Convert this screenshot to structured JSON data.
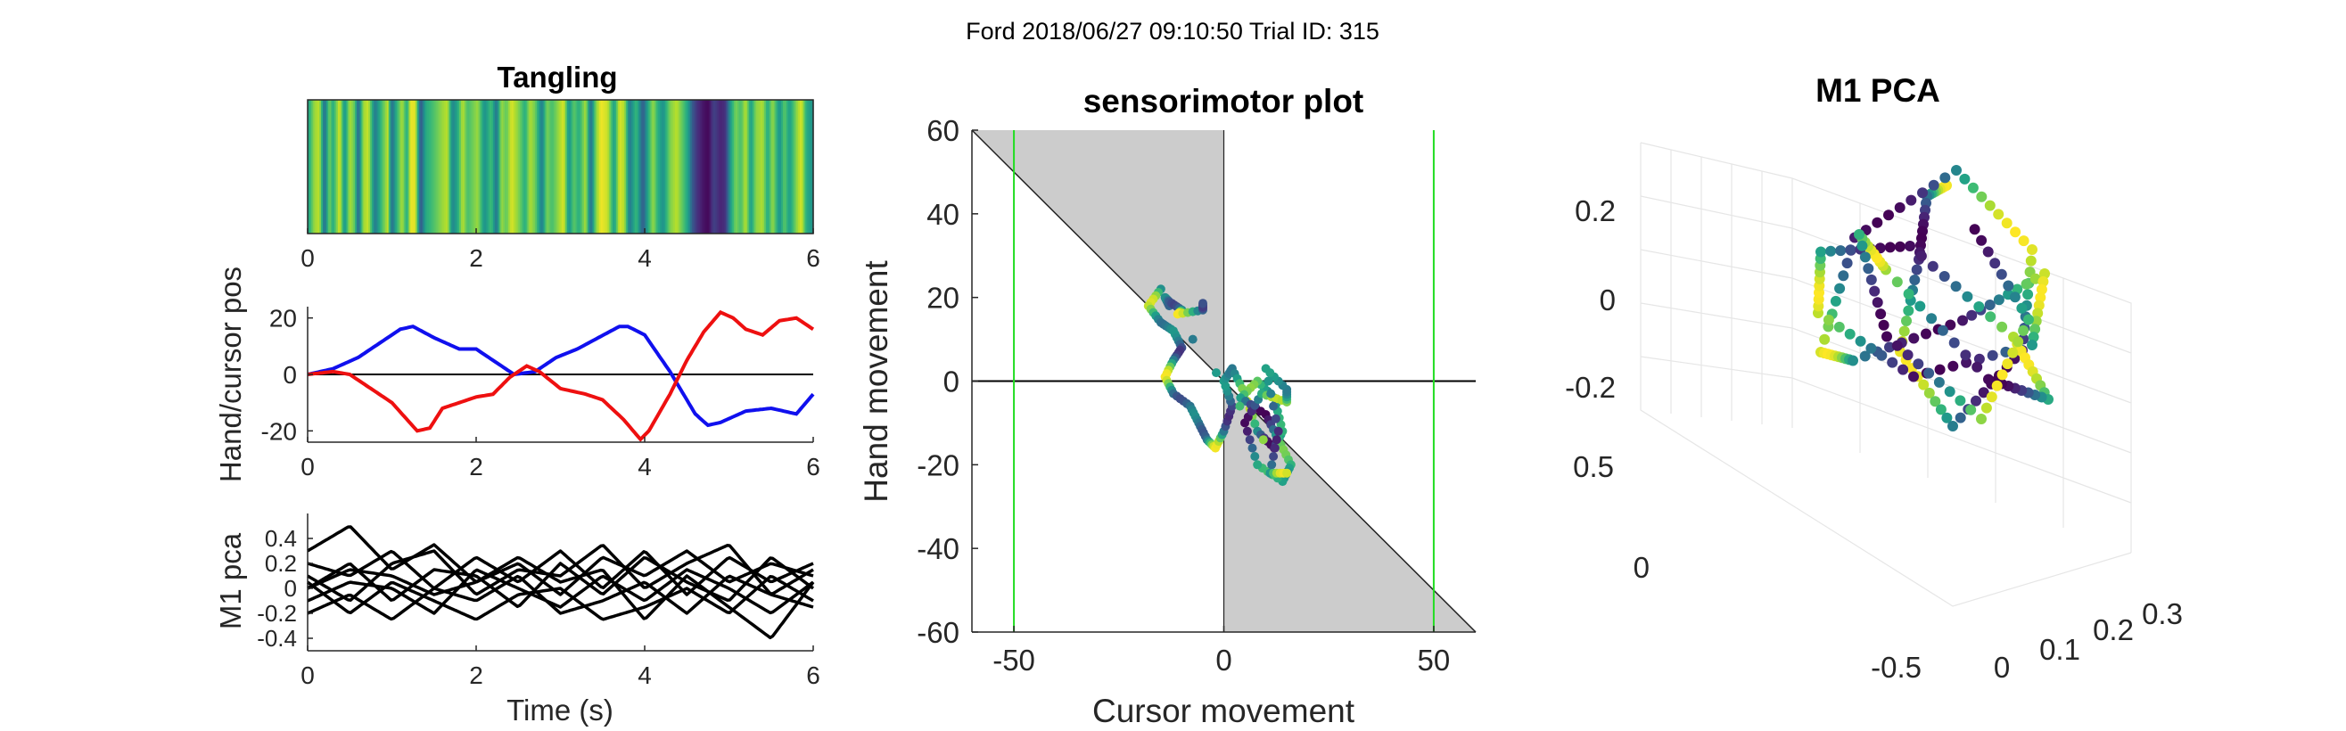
{
  "figure": {
    "suptitle": "Ford 2018/06/27 09:10:50 Trial ID: 315",
    "colormap": "viridis",
    "colors": {
      "hand": "#1010ee",
      "cursor": "#ee1010",
      "axis": "#262626",
      "zero_line": "#000000",
      "target": "#22dd22",
      "shade": "#cccccc",
      "grid": "#e6e6e6"
    }
  },
  "chart_data": [
    {
      "id": "tangling",
      "type": "heatmap",
      "title": "Tangling",
      "xlabel": "",
      "ylabel": "",
      "xlim": [
        0,
        6
      ],
      "xticks": [
        0,
        2,
        4,
        6
      ],
      "x_tick_labels": [
        "0",
        "2",
        "4",
        "6"
      ],
      "colormap": "viridis",
      "n_bins": 300,
      "value_knots": [
        [
          0.0,
          0.55
        ],
        [
          0.08,
          0.85
        ],
        [
          0.14,
          0.9
        ],
        [
          0.2,
          0.35
        ],
        [
          0.26,
          0.8
        ],
        [
          0.3,
          0.6
        ],
        [
          0.38,
          0.95
        ],
        [
          0.44,
          0.5
        ],
        [
          0.5,
          0.88
        ],
        [
          0.56,
          0.75
        ],
        [
          0.6,
          0.3
        ],
        [
          0.66,
          0.85
        ],
        [
          0.72,
          0.92
        ],
        [
          0.8,
          0.4
        ],
        [
          0.88,
          0.7
        ],
        [
          0.95,
          0.9
        ],
        [
          1.0,
          0.35
        ],
        [
          1.06,
          0.65
        ],
        [
          1.12,
          0.88
        ],
        [
          1.18,
          0.6
        ],
        [
          1.22,
          0.97
        ],
        [
          1.28,
          0.95
        ],
        [
          1.34,
          0.25
        ],
        [
          1.4,
          0.6
        ],
        [
          1.5,
          0.72
        ],
        [
          1.6,
          0.85
        ],
        [
          1.66,
          0.9
        ],
        [
          1.72,
          0.45
        ],
        [
          1.78,
          0.6
        ],
        [
          1.84,
          0.9
        ],
        [
          1.9,
          0.7
        ],
        [
          1.96,
          0.78
        ],
        [
          2.02,
          0.85
        ],
        [
          2.1,
          0.5
        ],
        [
          2.18,
          0.7
        ],
        [
          2.24,
          0.38
        ],
        [
          2.3,
          0.85
        ],
        [
          2.36,
          0.75
        ],
        [
          2.42,
          0.95
        ],
        [
          2.5,
          0.82
        ],
        [
          2.58,
          0.62
        ],
        [
          2.64,
          0.88
        ],
        [
          2.7,
          0.78
        ],
        [
          2.78,
          0.42
        ],
        [
          2.84,
          0.8
        ],
        [
          2.9,
          0.7
        ],
        [
          2.98,
          0.85
        ],
        [
          3.04,
          0.95
        ],
        [
          3.1,
          0.5
        ],
        [
          3.16,
          0.75
        ],
        [
          3.22,
          0.62
        ],
        [
          3.3,
          0.88
        ],
        [
          3.36,
          0.35
        ],
        [
          3.42,
          0.8
        ],
        [
          3.48,
          0.98
        ],
        [
          3.56,
          0.92
        ],
        [
          3.64,
          0.55
        ],
        [
          3.7,
          0.95
        ],
        [
          3.76,
          0.88
        ],
        [
          3.82,
          0.4
        ],
        [
          3.9,
          0.68
        ],
        [
          3.98,
          0.28
        ],
        [
          4.04,
          0.6
        ],
        [
          4.1,
          0.85
        ],
        [
          4.16,
          0.62
        ],
        [
          4.22,
          0.5
        ],
        [
          4.3,
          0.8
        ],
        [
          4.38,
          0.9
        ],
        [
          4.46,
          0.72
        ],
        [
          4.52,
          0.55
        ],
        [
          4.56,
          0.3
        ],
        [
          4.62,
          0.15
        ],
        [
          4.7,
          0.05
        ],
        [
          4.76,
          0.02
        ],
        [
          4.82,
          0.2
        ],
        [
          4.9,
          0.1
        ],
        [
          4.96,
          0.15
        ],
        [
          5.02,
          0.55
        ],
        [
          5.08,
          0.8
        ],
        [
          5.14,
          0.7
        ],
        [
          5.2,
          0.9
        ],
        [
          5.26,
          0.55
        ],
        [
          5.32,
          0.82
        ],
        [
          5.4,
          0.88
        ],
        [
          5.46,
          0.6
        ],
        [
          5.52,
          0.85
        ],
        [
          5.6,
          0.5
        ],
        [
          5.66,
          0.75
        ],
        [
          5.72,
          0.55
        ],
        [
          5.8,
          0.82
        ],
        [
          5.86,
          0.95
        ],
        [
          5.92,
          0.62
        ],
        [
          6.0,
          0.5
        ]
      ]
    },
    {
      "id": "hand_cursor",
      "type": "line",
      "title": "",
      "xlabel": "",
      "ylabel": "Hand/cursor pos",
      "xlim": [
        0,
        6
      ],
      "ylim": [
        -24,
        24
      ],
      "xticks": [
        0,
        2,
        4,
        6
      ],
      "x_tick_labels": [
        "0",
        "2",
        "4",
        "6"
      ],
      "yticks": [
        -20,
        0,
        20
      ],
      "y_tick_labels": [
        "-20",
        "0",
        "20"
      ],
      "zero_line": true,
      "series": [
        {
          "key": "hand",
          "color": "#1010ee",
          "x": [
            0,
            0.3,
            0.6,
            0.9,
            1.1,
            1.25,
            1.5,
            1.8,
            2.0,
            2.2,
            2.45,
            2.7,
            2.95,
            3.2,
            3.45,
            3.7,
            3.8,
            4.0,
            4.3,
            4.6,
            4.75,
            4.9,
            5.2,
            5.5,
            5.8,
            6.0
          ],
          "y": [
            0,
            2,
            6,
            12,
            16,
            17,
            13,
            9,
            9,
            5,
            0,
            1,
            6,
            9,
            13,
            17,
            17,
            14,
            1,
            -14,
            -18,
            -17,
            -13,
            -12,
            -14,
            -7
          ]
        },
        {
          "key": "cursor",
          "color": "#ee1010",
          "x": [
            0,
            0.3,
            0.5,
            0.7,
            1.0,
            1.3,
            1.45,
            1.6,
            1.8,
            2.0,
            2.2,
            2.4,
            2.6,
            2.75,
            3.0,
            3.3,
            3.5,
            3.75,
            3.95,
            4.05,
            4.3,
            4.5,
            4.7,
            4.9,
            5.05,
            5.2,
            5.4,
            5.6,
            5.8,
            6.0
          ],
          "y": [
            0,
            1,
            0,
            -4,
            -10,
            -20,
            -19,
            -12,
            -10,
            -8,
            -7,
            -1,
            3,
            1,
            -5,
            -7,
            -9,
            -16,
            -23,
            -20,
            -7,
            5,
            15,
            22,
            20,
            16,
            14,
            19,
            20,
            16
          ]
        }
      ]
    },
    {
      "id": "m1_pca_traces",
      "type": "line",
      "title": "",
      "xlabel": "Time (s)",
      "ylabel": "M1 pca",
      "xlim": [
        0,
        6
      ],
      "ylim": [
        -0.5,
        0.6
      ],
      "xticks": [
        0,
        2,
        4,
        6
      ],
      "x_tick_labels": [
        "0",
        "2",
        "4",
        "6"
      ],
      "yticks": [
        -0.4,
        -0.2,
        0,
        0.2,
        0.4
      ],
      "y_tick_labels": [
        "-0.4",
        "-0.2",
        "0",
        "0.2",
        "0.4"
      ],
      "line_color": "#000000",
      "series": [
        {
          "key": "pc1",
          "x": [
            0,
            0.5,
            1,
            1.5,
            2,
            2.5,
            3,
            3.5,
            4,
            4.5,
            5,
            5.5,
            6
          ],
          "y": [
            0.3,
            0.5,
            0.15,
            0.35,
            0.05,
            0.2,
            -0.05,
            0.25,
            0.1,
            0.3,
            0.05,
            0.2,
            0.1
          ]
        },
        {
          "key": "pc2",
          "x": [
            0,
            0.5,
            1,
            1.5,
            2,
            2.5,
            3,
            3.5,
            4,
            4.5,
            5,
            5.5,
            6
          ],
          "y": [
            0.2,
            0.1,
            0.3,
            0.0,
            0.25,
            0.05,
            0.3,
            0.0,
            0.3,
            -0.05,
            0.25,
            0.05,
            0.2
          ]
        },
        {
          "key": "pc3",
          "x": [
            0,
            0.5,
            1,
            1.5,
            2,
            2.5,
            3,
            3.5,
            4,
            4.5,
            5,
            5.5,
            6
          ],
          "y": [
            0.1,
            -0.1,
            0.2,
            0.3,
            -0.05,
            0.15,
            0.1,
            0.35,
            0.0,
            0.2,
            0.35,
            -0.05,
            0.15
          ]
        },
        {
          "key": "pc4",
          "x": [
            0,
            0.5,
            1,
            1.5,
            2,
            2.5,
            3,
            3.5,
            4,
            4.5,
            5,
            5.5,
            6
          ],
          "y": [
            0.0,
            0.2,
            -0.1,
            0.15,
            0.1,
            -0.15,
            0.2,
            -0.05,
            0.25,
            0.05,
            -0.1,
            0.25,
            0.0
          ]
        },
        {
          "key": "pc5",
          "x": [
            0,
            0.5,
            1,
            1.5,
            2,
            2.5,
            3,
            3.5,
            4,
            4.5,
            5,
            5.5,
            6
          ],
          "y": [
            -0.1,
            0.05,
            0.0,
            -0.2,
            0.15,
            0.0,
            -0.15,
            0.1,
            -0.1,
            0.15,
            0.0,
            -0.2,
            0.05
          ]
        },
        {
          "key": "pc6",
          "x": [
            0,
            0.5,
            1,
            1.5,
            2,
            2.5,
            3,
            3.5,
            4,
            4.5,
            5,
            5.5,
            6
          ],
          "y": [
            -0.2,
            -0.05,
            -0.25,
            0.0,
            -0.1,
            0.1,
            -0.2,
            -0.1,
            0.05,
            -0.2,
            0.1,
            -0.05,
            -0.15
          ]
        },
        {
          "key": "pc7",
          "x": [
            0,
            0.5,
            1,
            1.5,
            2,
            2.5,
            3,
            3.5,
            4,
            4.5,
            5,
            5.5,
            6
          ],
          "y": [
            0.05,
            -0.2,
            0.05,
            -0.1,
            -0.25,
            -0.05,
            0.0,
            -0.25,
            -0.15,
            0.0,
            -0.2,
            0.1,
            -0.1
          ]
        },
        {
          "key": "pc8",
          "x": [
            0,
            0.5,
            1,
            1.5,
            2,
            2.5,
            3,
            3.5,
            4,
            4.5,
            5,
            5.5,
            6
          ],
          "y": [
            0.0,
            0.15,
            0.1,
            -0.05,
            0.05,
            0.25,
            0.05,
            0.15,
            -0.25,
            0.1,
            -0.15,
            -0.4,
            0.05
          ]
        }
      ]
    },
    {
      "id": "sensorimotor",
      "type": "scatter",
      "title": "sensorimotor plot",
      "xlabel": "Cursor movement",
      "ylabel": "Hand movement",
      "xlim": [
        -60,
        60
      ],
      "ylim": [
        -60,
        60
      ],
      "xticks": [
        -50,
        0,
        50
      ],
      "x_tick_labels": [
        "-50",
        "0",
        "50"
      ],
      "yticks": [
        -60,
        -40,
        -20,
        0,
        20,
        40,
        60
      ],
      "y_tick_labels": [
        "-60",
        "-40",
        "-20",
        "0",
        "20",
        "40",
        "60"
      ],
      "target_lines_x": [
        -50,
        50
      ],
      "shaded_quadrants": [
        "upper-left above diagonal",
        "lower-right below diagonal"
      ],
      "diagonal": {
        "x": [
          -60,
          60
        ],
        "y": [
          60,
          -60
        ]
      },
      "colormap": "viridis",
      "points": [
        [
          -15,
          22
        ],
        [
          -18,
          18
        ],
        [
          -15,
          14
        ],
        [
          -12,
          12
        ],
        [
          -10,
          8
        ],
        [
          -12,
          5
        ],
        [
          -14,
          1
        ],
        [
          -12,
          -3
        ],
        [
          -8,
          -6
        ],
        [
          -6,
          -10
        ],
        [
          -4,
          -14
        ],
        [
          -2,
          -16
        ],
        [
          0,
          -12
        ],
        [
          2,
          -6
        ],
        [
          0,
          0
        ],
        [
          2,
          3
        ],
        [
          5,
          -3
        ],
        [
          8,
          -12
        ],
        [
          12,
          -16
        ],
        [
          14,
          -12
        ],
        [
          12,
          -4
        ],
        [
          8,
          0
        ],
        [
          4,
          -4
        ],
        [
          10,
          -8
        ],
        [
          13,
          -14
        ],
        [
          16,
          -20
        ],
        [
          14,
          -24
        ],
        [
          8,
          -20
        ],
        [
          5,
          -10
        ],
        [
          9,
          -3
        ],
        [
          15,
          -5
        ],
        [
          15,
          -2
        ],
        [
          10,
          3
        ],
        [
          13,
          -12
        ],
        [
          11,
          -22
        ],
        [
          15,
          -22
        ],
        [
          -13,
          18
        ],
        [
          -14,
          20
        ],
        [
          -13,
          19
        ],
        [
          -10,
          17
        ],
        [
          -11,
          16
        ],
        [
          -5,
          17
        ],
        [
          -5,
          19
        ]
      ]
    },
    {
      "id": "m1_pca_3d",
      "type": "scatter",
      "title": "M1 PCA",
      "xlabel": "",
      "ylabel": "",
      "zlabel": "",
      "z_ticks": [
        -0.2,
        0,
        0.2
      ],
      "z_tick_labels": [
        "-0.2",
        "0",
        "0.2"
      ],
      "x_tick_labels": [
        "0.5",
        "0",
        "-0.5"
      ],
      "y_tick_labels": [
        "0",
        "0.1",
        "0.2",
        "0.3"
      ],
      "grid": true,
      "colormap": "viridis",
      "trajectory": [
        [
          -0.4,
          -0.3,
          0.1
        ],
        [
          -0.2,
          -0.1,
          0.2
        ],
        [
          0,
          0.05,
          0.15
        ],
        [
          0.15,
          0.2,
          0
        ],
        [
          0.3,
          0.1,
          -0.15
        ],
        [
          0.2,
          -0.2,
          -0.05
        ],
        [
          0,
          -0.35,
          0.1
        ],
        [
          -0.2,
          -0.2,
          0.25
        ],
        [
          -0.35,
          0.05,
          0.05
        ],
        [
          -0.2,
          0.25,
          -0.15
        ],
        [
          0.05,
          0.3,
          -0.05
        ],
        [
          0.25,
          0.05,
          0.1
        ],
        [
          0.3,
          -0.2,
          0.2
        ],
        [
          0.1,
          -0.3,
          -0.1
        ],
        [
          -0.15,
          -0.05,
          -0.25
        ],
        [
          -0.3,
          0.2,
          -0.1
        ],
        [
          -0.15,
          0.3,
          0.15
        ],
        [
          0.1,
          0.15,
          0.25
        ],
        [
          0.3,
          -0.1,
          0.05
        ],
        [
          0.2,
          -0.3,
          -0.2
        ],
        [
          -0.05,
          -0.25,
          -0.25
        ],
        [
          -0.25,
          0,
          0
        ],
        [
          -0.1,
          0.2,
          0.2
        ],
        [
          0.15,
          0.25,
          0.05
        ],
        [
          0.3,
          0,
          -0.15
        ],
        [
          0.15,
          -0.25,
          0
        ],
        [
          -0.05,
          -0.15,
          0.2
        ]
      ]
    }
  ]
}
